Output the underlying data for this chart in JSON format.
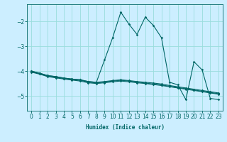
{
  "xlabel": "Humidex (Indice chaleur)",
  "bg_color": "#cceeff",
  "grid_color": "#99dddd",
  "line_color": "#006666",
  "xlim": [
    -0.5,
    23.5
  ],
  "ylim": [
    -5.6,
    -1.3
  ],
  "yticks": [
    -5,
    -4,
    -3,
    -2
  ],
  "xticks": [
    0,
    1,
    2,
    3,
    4,
    5,
    6,
    7,
    8,
    9,
    10,
    11,
    12,
    13,
    14,
    15,
    16,
    17,
    18,
    19,
    20,
    21,
    22,
    23
  ],
  "y_main": [
    -4.0,
    -4.08,
    -4.18,
    -4.22,
    -4.28,
    -4.32,
    -4.35,
    -4.42,
    -4.45,
    -4.42,
    -4.38,
    -4.35,
    -4.38,
    -4.42,
    -4.45,
    -4.48,
    -4.52,
    -4.58,
    -4.63,
    -4.68,
    -4.73,
    -4.78,
    -4.83,
    -4.88
  ],
  "y_jagged": [
    -4.0,
    -4.08,
    -4.18,
    -4.22,
    -4.28,
    -4.32,
    -4.35,
    -4.42,
    -4.45,
    -3.55,
    -2.65,
    -1.62,
    -2.1,
    -2.52,
    -1.82,
    -2.15,
    -2.65,
    -4.45,
    -4.55,
    -5.15,
    -3.62,
    -3.95,
    -5.1,
    -5.15
  ],
  "y_line2": [
    -4.02,
    -4.1,
    -4.2,
    -4.25,
    -4.3,
    -4.34,
    -4.37,
    -4.44,
    -4.48,
    -4.44,
    -4.4,
    -4.37,
    -4.4,
    -4.44,
    -4.48,
    -4.52,
    -4.56,
    -4.61,
    -4.66,
    -4.71,
    -4.76,
    -4.81,
    -4.86,
    -4.91
  ],
  "y_line3": [
    -4.04,
    -4.12,
    -4.22,
    -4.27,
    -4.32,
    -4.36,
    -4.4,
    -4.47,
    -4.5,
    -4.47,
    -4.43,
    -4.4,
    -4.43,
    -4.47,
    -4.5,
    -4.54,
    -4.58,
    -4.63,
    -4.68,
    -4.73,
    -4.78,
    -4.83,
    -4.88,
    -4.93
  ]
}
